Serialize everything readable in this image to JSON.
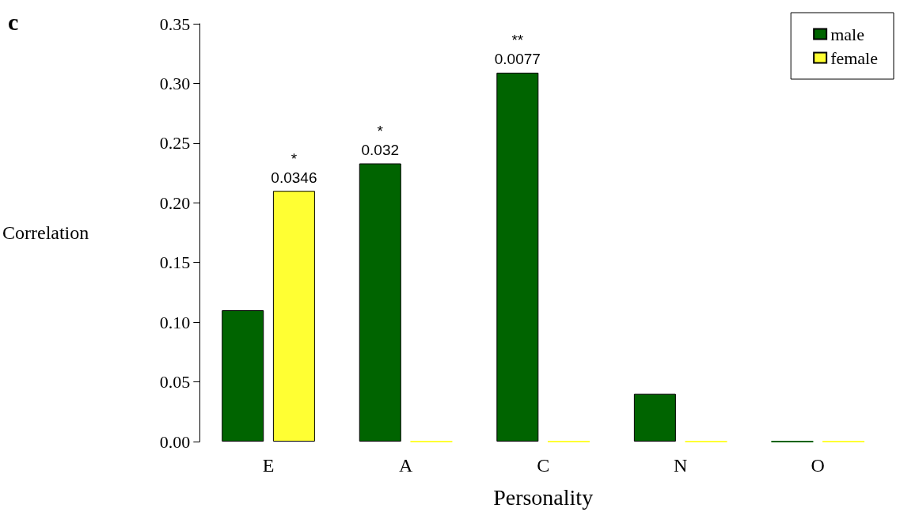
{
  "chart_data": {
    "type": "bar",
    "xlabel": "Personality",
    "ylabel": "Correlation",
    "categories": [
      "E",
      "A",
      "C",
      "N",
      "O"
    ],
    "series": [
      {
        "name": "male",
        "color": "#006400",
        "values": [
          0.11,
          0.233,
          0.309,
          0.04,
          0
        ]
      },
      {
        "name": "female",
        "color": "#ffff33",
        "values": [
          0.21,
          0,
          0,
          0,
          0
        ]
      }
    ],
    "ylim": [
      0,
      0.35
    ],
    "yticks": [
      {
        "value": 0,
        "label": "0.00"
      },
      {
        "value": 0.05,
        "label": "0.05"
      },
      {
        "value": 0.1,
        "label": "0.10"
      },
      {
        "value": 0.15,
        "label": "0.15"
      },
      {
        "value": 0.2,
        "label": "0.20"
      },
      {
        "value": 0.25,
        "label": "0.25"
      },
      {
        "value": 0.3,
        "label": "0.30"
      },
      {
        "value": 0.35,
        "label": "0.35"
      }
    ],
    "grid": false,
    "legend": "top right",
    "annotations": [
      "c",
      "*",
      "0.0346",
      "*",
      "0.032",
      "**",
      "0.0077"
    ]
  }
}
